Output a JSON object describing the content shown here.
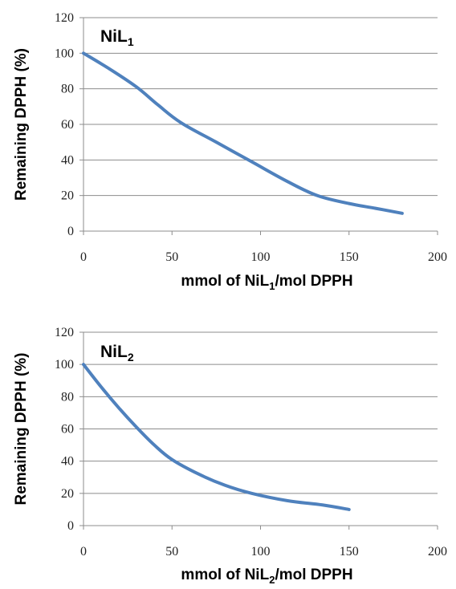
{
  "chart_data": [
    {
      "type": "line",
      "title": "",
      "annotation": {
        "base": "NiL",
        "sub": "1"
      },
      "xlabel": {
        "before": "mmol of NiL",
        "sub": "1",
        "after": "/mol DPPH"
      },
      "ylabel": "Remaining DPPH (%)",
      "xlim": [
        0,
        200
      ],
      "ylim": [
        0,
        120
      ],
      "xticks": [
        "0",
        "50",
        "100",
        "150",
        "200"
      ],
      "yticks": [
        "0",
        "20",
        "40",
        "60",
        "80",
        "100",
        "120"
      ],
      "grid": true,
      "series": [
        {
          "color": "#4f81bd",
          "x": [
            0,
            15,
            30,
            42,
            55,
            75,
            95,
            115,
            132,
            150,
            165,
            180
          ],
          "y": [
            100,
            91,
            81,
            71,
            61,
            50,
            39,
            28,
            20,
            15.5,
            12.8,
            10
          ]
        }
      ]
    },
    {
      "type": "line",
      "title": "",
      "annotation": {
        "base": "NiL",
        "sub": "2"
      },
      "xlabel": {
        "before": "mmol of NiL",
        "sub": "2",
        "after": "/mol DPPH"
      },
      "ylabel": "Remaining DPPH (%)",
      "xlim": [
        0,
        200
      ],
      "ylim": [
        0,
        120
      ],
      "xticks": [
        "0",
        "50",
        "100",
        "150",
        "200"
      ],
      "yticks": [
        "0",
        "20",
        "40",
        "60",
        "80",
        "100",
        "120"
      ],
      "grid": true,
      "series": [
        {
          "color": "#4f81bd",
          "x": [
            0,
            10,
            20,
            30,
            40,
            50,
            65,
            80,
            95,
            115,
            135,
            150
          ],
          "y": [
            100,
            86,
            73,
            61,
            50,
            41,
            32,
            25,
            20,
            15.5,
            12.8,
            10
          ]
        }
      ]
    }
  ]
}
